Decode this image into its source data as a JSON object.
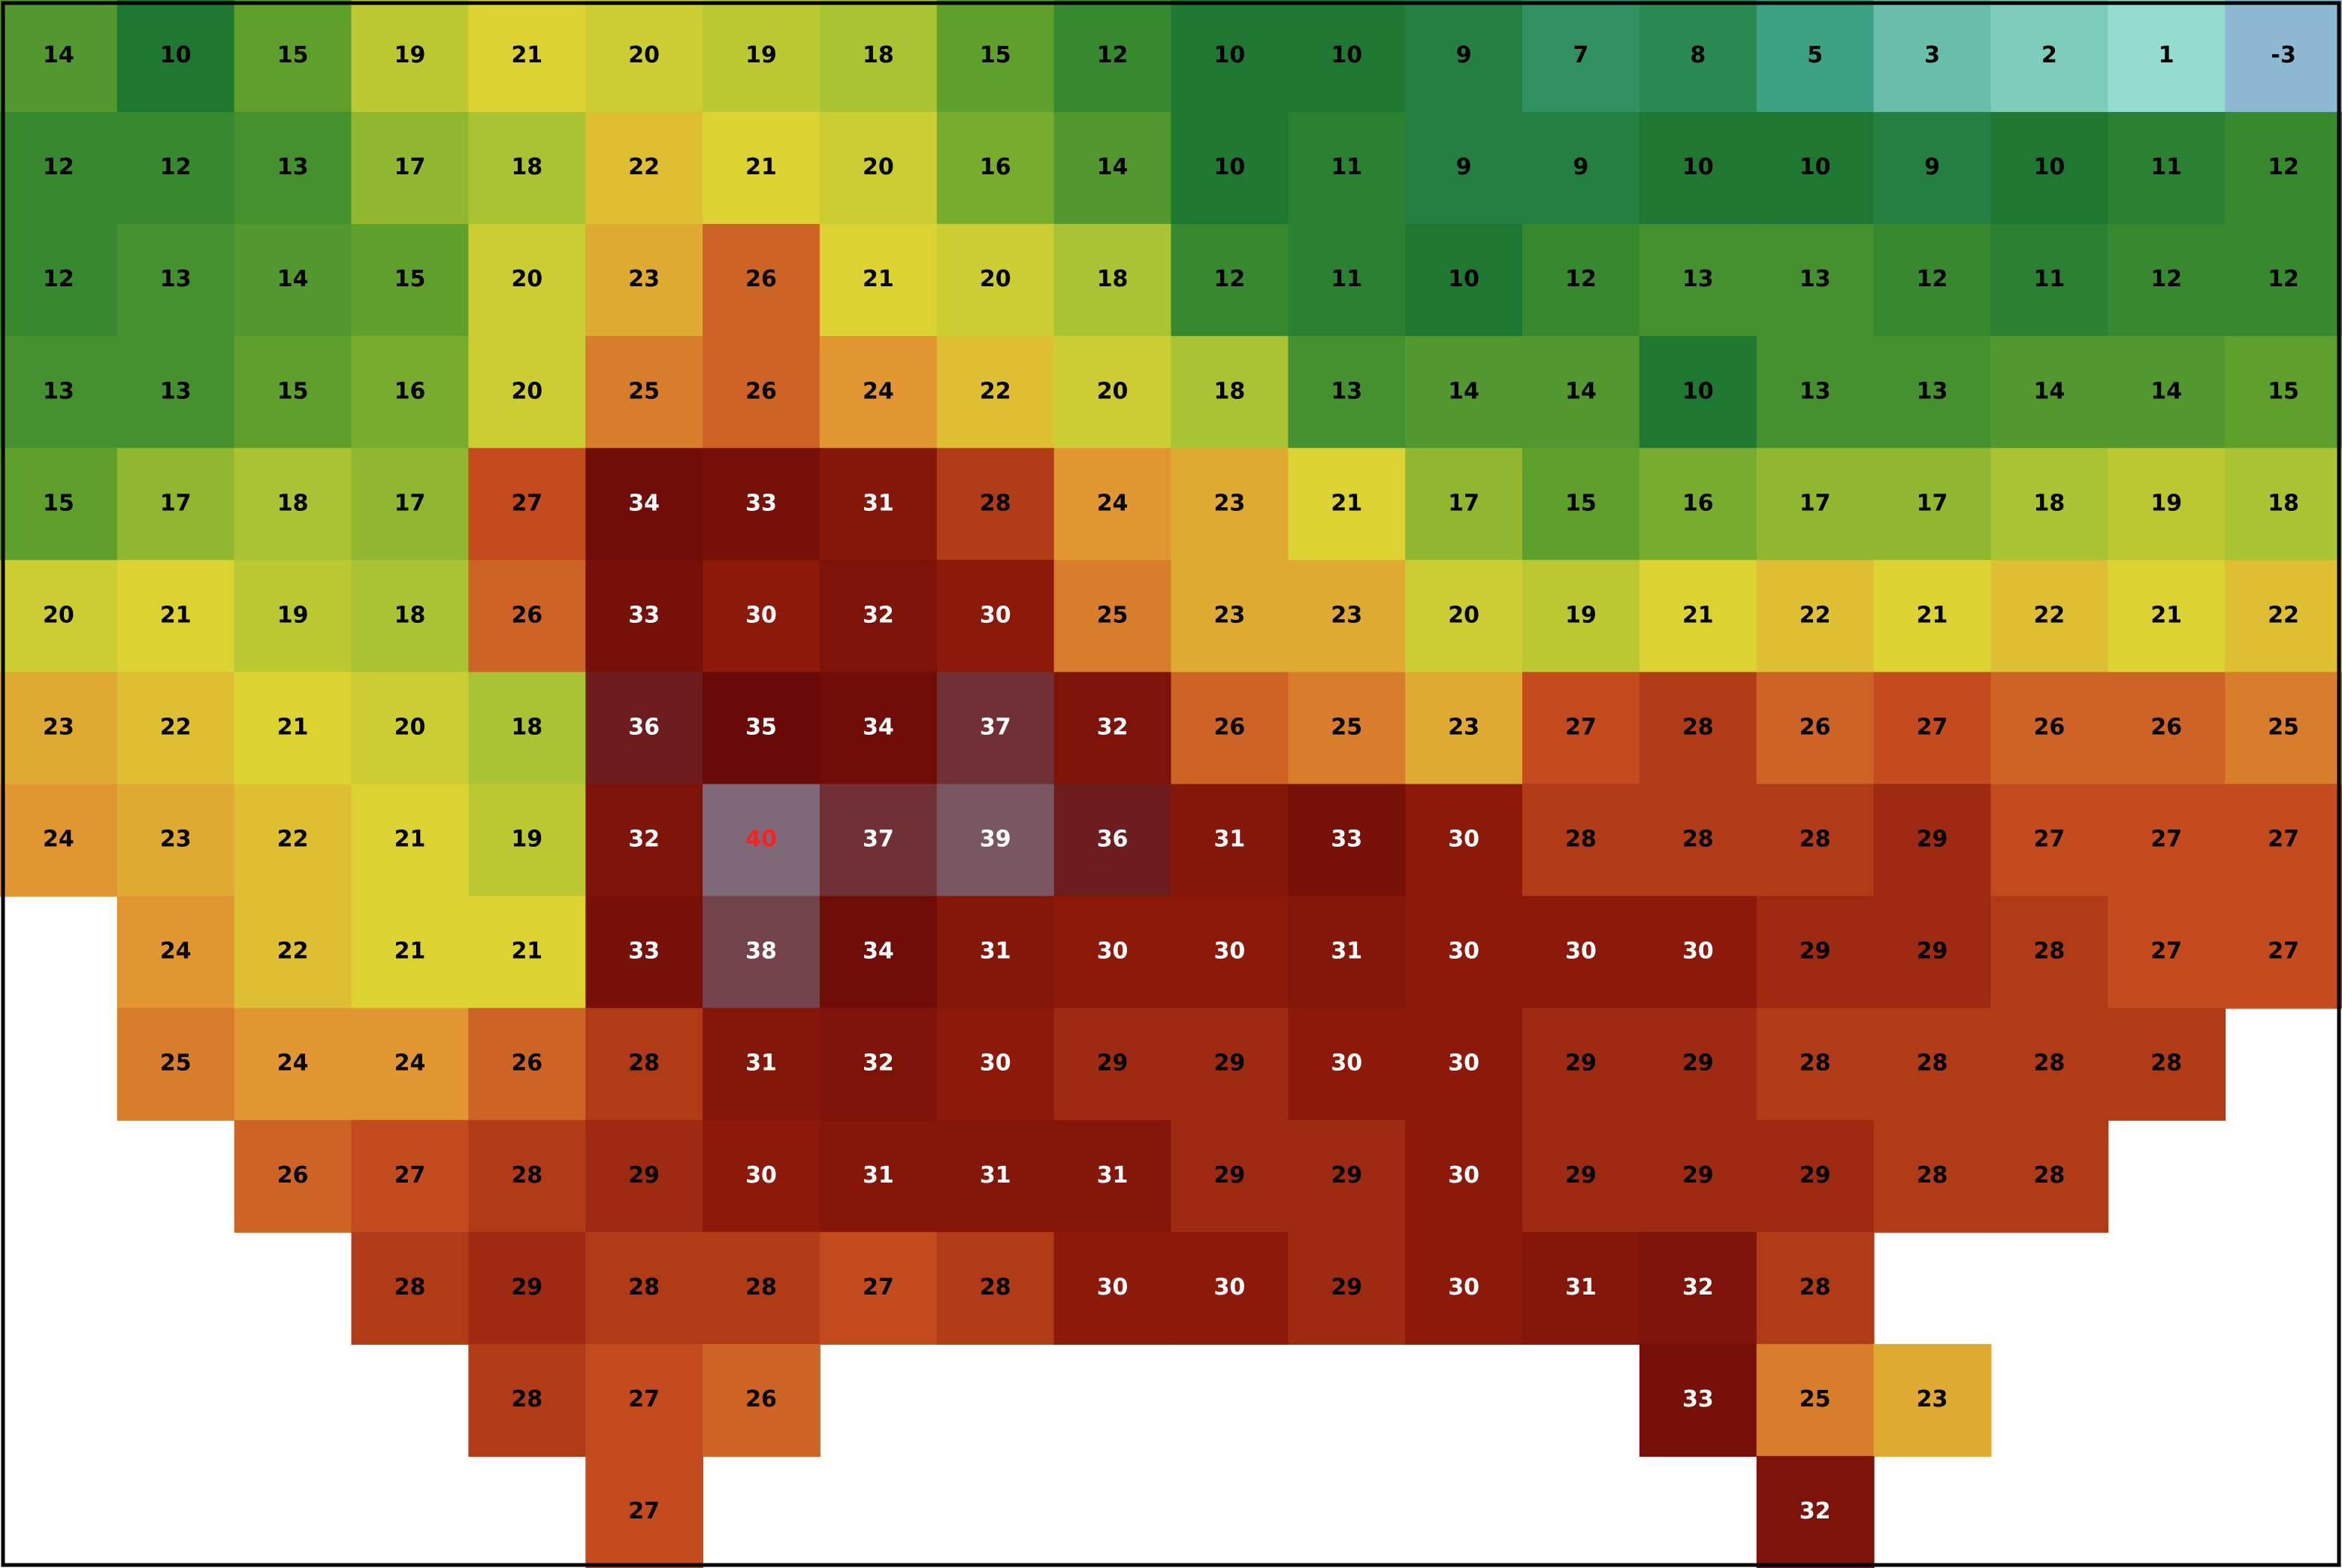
{
  "map": {
    "rows": [
      [
        14,
        10,
        15,
        19,
        21,
        20,
        19,
        18,
        15,
        12,
        10,
        10,
        9,
        7,
        8,
        5,
        3,
        2,
        1,
        -3
      ],
      [
        12,
        12,
        13,
        17,
        18,
        22,
        21,
        20,
        16,
        14,
        10,
        11,
        9,
        9,
        10,
        10,
        9,
        10,
        11,
        12
      ],
      [
        12,
        13,
        14,
        15,
        20,
        23,
        26,
        21,
        20,
        18,
        12,
        11,
        10,
        12,
        13,
        13,
        12,
        11,
        12,
        12
      ],
      [
        13,
        13,
        15,
        16,
        20,
        25,
        26,
        24,
        22,
        20,
        18,
        13,
        14,
        14,
        10,
        13,
        13,
        14,
        14,
        15
      ],
      [
        15,
        17,
        18,
        17,
        27,
        34,
        33,
        31,
        28,
        24,
        23,
        21,
        17,
        15,
        16,
        17,
        17,
        18,
        19,
        18
      ],
      [
        20,
        21,
        19,
        18,
        26,
        33,
        30,
        32,
        30,
        25,
        23,
        23,
        20,
        19,
        21,
        22,
        21,
        22,
        21,
        22
      ],
      [
        23,
        22,
        21,
        20,
        18,
        36,
        35,
        34,
        37,
        32,
        26,
        25,
        23,
        27,
        28,
        26,
        27,
        26,
        26,
        25
      ],
      [
        24,
        23,
        22,
        21,
        19,
        32,
        40,
        37,
        39,
        36,
        31,
        33,
        30,
        28,
        28,
        28,
        29,
        27,
        27,
        27
      ],
      [
        null,
        24,
        22,
        21,
        21,
        33,
        38,
        34,
        31,
        30,
        30,
        31,
        30,
        30,
        30,
        29,
        29,
        28,
        27,
        27
      ],
      [
        null,
        25,
        24,
        24,
        26,
        28,
        31,
        32,
        30,
        29,
        29,
        30,
        30,
        29,
        29,
        28,
        28,
        28,
        28,
        null
      ],
      [
        null,
        null,
        26,
        27,
        28,
        29,
        30,
        31,
        31,
        31,
        29,
        29,
        30,
        29,
        29,
        29,
        28,
        28,
        null,
        null
      ],
      [
        null,
        null,
        null,
        28,
        29,
        28,
        28,
        27,
        28,
        30,
        30,
        29,
        30,
        31,
        32,
        28,
        null,
        null,
        null,
        null
      ],
      [
        null,
        null,
        null,
        null,
        28,
        27,
        26,
        null,
        null,
        null,
        null,
        null,
        null,
        null,
        33,
        25,
        23,
        null,
        null,
        null
      ],
      [
        null,
        null,
        null,
        null,
        null,
        27,
        null,
        null,
        null,
        null,
        null,
        null,
        null,
        null,
        null,
        32,
        null,
        null,
        null,
        null
      ]
    ]
  }
}
